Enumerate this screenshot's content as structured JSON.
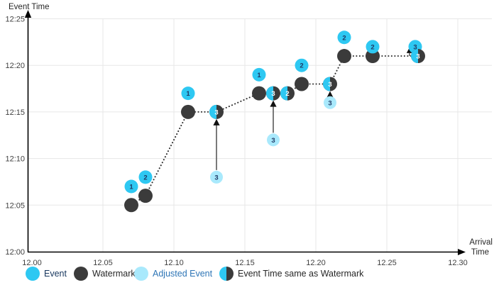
{
  "colors": {
    "event": "#2EC8F2",
    "watermark": "#3B3B3B",
    "adjusted": "#A9E9FC",
    "number_navy": "#1F3864",
    "number_white": "#FFFFFF",
    "grid": "#E7E7E7",
    "axis": "#000000",
    "dotted_line": "#2B2B2B",
    "arrow_stem": "#595959",
    "arrow_head": "#111111",
    "tick_text": "#404040",
    "axis_title_text": "#262626"
  },
  "legend": {
    "items": [
      {
        "label": "Event",
        "kind": "event",
        "text_color": "#17375E"
      },
      {
        "label": "Watermark",
        "kind": "watermark",
        "text_color": "#262626"
      },
      {
        "label": "Adjusted Event",
        "kind": "adjusted",
        "text_color": "#2E75B6"
      },
      {
        "label": "Event Time same as Watermark",
        "kind": "half",
        "text_color": "#262626"
      }
    ]
  },
  "chart_data": {
    "type": "scatter",
    "title": "",
    "ylabel": "Event Time",
    "xlabel_lines": [
      "Arrival",
      "Time"
    ],
    "xlim": [
      "12.00",
      "12.30"
    ],
    "ylim": [
      "12:00",
      "12:25"
    ],
    "grid": true,
    "x_ticks": [
      {
        "label": "12.00"
      },
      {
        "label": "12.05"
      },
      {
        "label": "12.10"
      },
      {
        "label": "12.15"
      },
      {
        "label": "12.20"
      },
      {
        "label": "12.25"
      },
      {
        "label": "12.30"
      }
    ],
    "y_ticks": [
      {
        "label": "12:00"
      },
      {
        "label": "12:05"
      },
      {
        "label": "12:10"
      },
      {
        "label": "12:15"
      },
      {
        "label": "12:20"
      },
      {
        "label": "12:25"
      }
    ],
    "events": [
      {
        "label": "1",
        "arrival": "12.07",
        "event_time": "12:07"
      },
      {
        "label": "2",
        "arrival": "12.08",
        "event_time": "12:08"
      },
      {
        "label": "1",
        "arrival": "12.11",
        "event_time": "12:17"
      },
      {
        "label": "1",
        "arrival": "12.16",
        "event_time": "12:19"
      },
      {
        "label": "2",
        "arrival": "12.19",
        "event_time": "12:20"
      },
      {
        "label": "2",
        "arrival": "12.22",
        "event_time": "12:23"
      },
      {
        "label": "2",
        "arrival": "12.24",
        "event_time": "12:22"
      },
      {
        "label": "3",
        "arrival": "12.27",
        "event_time": "12:22"
      }
    ],
    "watermarks": [
      {
        "arrival": "12.07",
        "watermark": "12:05"
      },
      {
        "arrival": "12.08",
        "watermark": "12:06"
      },
      {
        "arrival": "12.11",
        "watermark": "12:15"
      },
      {
        "arrival": "12.16",
        "watermark": "12:17"
      },
      {
        "arrival": "12.19",
        "watermark": "12:18"
      },
      {
        "arrival": "12.22",
        "watermark": "12:21"
      },
      {
        "arrival": "12.24",
        "watermark": "12:21"
      }
    ],
    "same_as_watermark": [
      {
        "label": "3",
        "arrival": "12.13",
        "time": "12:15"
      },
      {
        "label": "3",
        "arrival": "12.17",
        "time": "12:17"
      },
      {
        "label": "2",
        "arrival": "12.18",
        "time": "12:17"
      },
      {
        "label": "3",
        "arrival": "12.21",
        "time": "12:18"
      },
      {
        "label": "3",
        "arrival": "12.272",
        "time": "12:21"
      }
    ],
    "adjusted_events": [
      {
        "label": "3",
        "arrival": "12.13",
        "original_time": "12:08",
        "adjusted_to": "12:15"
      },
      {
        "label": "3",
        "arrival": "12.17",
        "original_time": "12:12",
        "adjusted_to": "12:17"
      },
      {
        "label": "3",
        "arrival": "12.21",
        "original_time": "12:16",
        "adjusted_to": "12:18"
      }
    ],
    "small_arrow": {
      "arrival": "12.266",
      "base": "12:21",
      "tip": "12:22"
    }
  }
}
